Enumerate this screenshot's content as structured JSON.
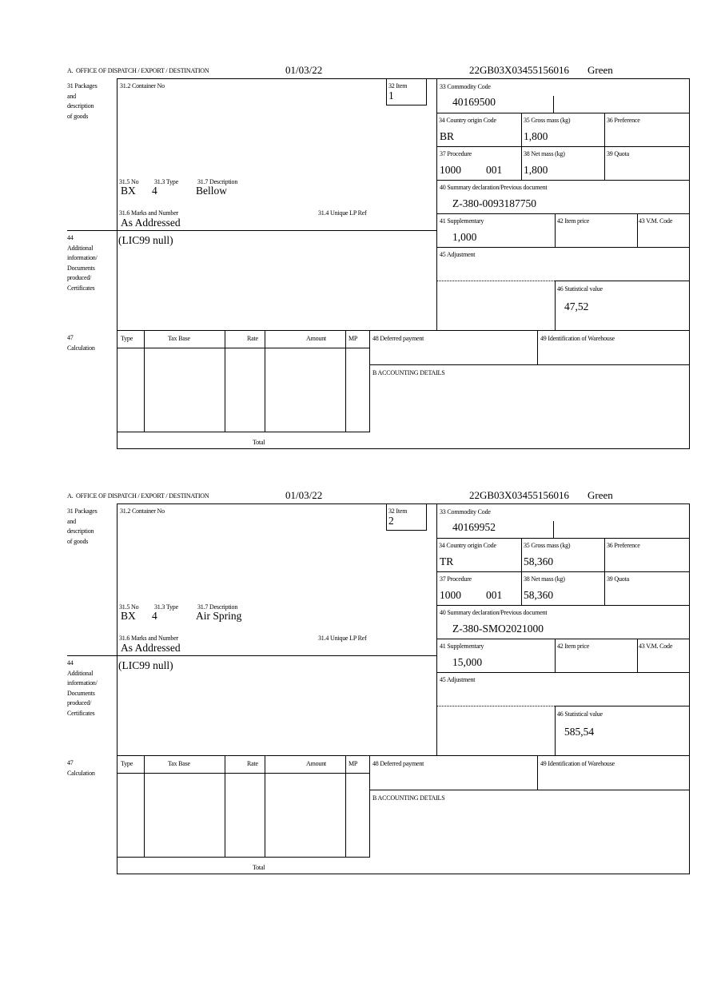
{
  "labels": {
    "office": "A.  OFFICE OF DISPATCH / EXPORT / DESTINATION",
    "packages": "31 Packages\nand\ndescription\nof goods",
    "container_no": "31.2 Container No",
    "item": "32 Item",
    "no": "31.5 No",
    "type": "31.3 Type",
    "description": "31.7 Description",
    "marks": "31.6 Marks and Number",
    "unique_lp_ref": "31.4 Unique LP Ref",
    "additional_info": "44\nAdditional\ninformation/\nDocuments\nproduced/\nCertificates",
    "commodity_code": "33 Commodity Code",
    "country_origin": "34 Country origin Code",
    "gross_mass": "35 Gross mass (kg)",
    "preference": "36 Preference",
    "procedure": "37 Procedure",
    "net_mass": "38 Net mass (kg)",
    "quota": "39 Quota",
    "summary_declaration": "40 Summary declaration/Previous document",
    "supplementary": "41 Supplementary",
    "item_price": "42 Item price",
    "vm_code": "43 V.M. Code",
    "adjustment": "45 Adjustment",
    "statistical_value": "46 Statistical value",
    "calculation": "47\nCalculation",
    "calc_type": "Type",
    "calc_tax_base": "Tax Base",
    "calc_rate": "Rate",
    "calc_amount": "Amount",
    "calc_mp": "MP",
    "deferred_payment": "48 Deferred payment",
    "warehouse_id": "49 Identification of Warehouse",
    "accounting": "B ACCOUNTING DETAILS",
    "total": "Total"
  },
  "items": [
    {
      "date": "01/03/22",
      "reference": "22GB03X03455156016",
      "route": "Green",
      "item_no": "1",
      "package_kind": "BX",
      "package_count": "4",
      "description": "Bellow",
      "marks": "As Addressed",
      "additional_info": "(LIC99 null)",
      "commodity_code": "40169500",
      "country_origin": "BR",
      "gross_mass": "1,800",
      "procedure": "1000",
      "procedure_additional": "001",
      "net_mass": "1,800",
      "summary_declaration": "Z-380-0093187750",
      "supplementary": "1,000",
      "statistical_value": "47,52"
    },
    {
      "date": "01/03/22",
      "reference": "22GB03X03455156016",
      "route": "Green",
      "item_no": "2",
      "package_kind": "BX",
      "package_count": "4",
      "description": "Air Spring",
      "marks": "As Addressed",
      "additional_info": "(LIC99 null)",
      "commodity_code": "40169952",
      "country_origin": "TR",
      "gross_mass": "58,360",
      "procedure": "1000",
      "procedure_additional": "001",
      "net_mass": "58,360",
      "summary_declaration": "Z-380-SMO2021000",
      "supplementary": "15,000",
      "statistical_value": "585,54"
    }
  ]
}
